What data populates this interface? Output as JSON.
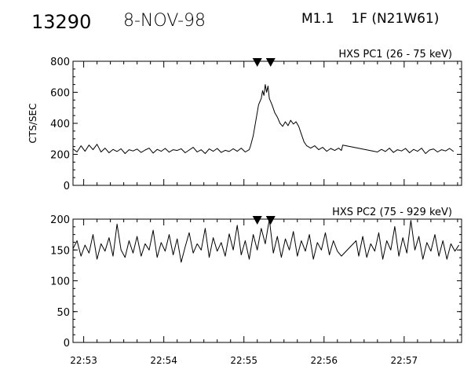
{
  "header": {
    "event_id": "13290",
    "date": "8-NOV-98",
    "flare": "M1.1    1F (N21W61)"
  },
  "x_tick_labels": [
    "22:53",
    "22:54",
    "22:55",
    "22:56",
    "22:57"
  ],
  "chart_data": [
    {
      "type": "line",
      "title": "HXS PC1 (26 - 75 keV)",
      "ylabel": "CTS/SEC",
      "xlabel": "",
      "ylim": [
        0,
        800
      ],
      "yticks": [
        0,
        200,
        400,
        600,
        800
      ],
      "xlim": [
        "22:52:52",
        "22:57:43"
      ],
      "xticks": [
        "22:53",
        "22:54",
        "22:55",
        "22:56",
        "22:57"
      ],
      "markers": [
        "22:55:10",
        "22:55:20"
      ],
      "grid": false,
      "series": [
        {
          "points": [
            [
              "22:52:52",
              235
            ],
            [
              "22:52:55",
              215
            ],
            [
              "22:52:58",
              255
            ],
            [
              "22:53:01",
              220
            ],
            [
              "22:53:04",
              260
            ],
            [
              "22:53:07",
              230
            ],
            [
              "22:53:10",
              265
            ],
            [
              "22:53:13",
              215
            ],
            [
              "22:53:16",
              240
            ],
            [
              "22:53:19",
              210
            ],
            [
              "22:53:22",
              232
            ],
            [
              "22:53:25",
              218
            ],
            [
              "22:53:28",
              236
            ],
            [
              "22:53:31",
              205
            ],
            [
              "22:53:34",
              230
            ],
            [
              "22:53:37",
              222
            ],
            [
              "22:53:40",
              234
            ],
            [
              "22:53:43",
              212
            ],
            [
              "22:53:46",
              228
            ],
            [
              "22:53:49",
              240
            ],
            [
              "22:53:52",
              208
            ],
            [
              "22:53:55",
              232
            ],
            [
              "22:53:58",
              220
            ],
            [
              "22:54:01",
              238
            ],
            [
              "22:54:04",
              214
            ],
            [
              "22:54:07",
              230
            ],
            [
              "22:54:10",
              225
            ],
            [
              "22:54:13",
              236
            ],
            [
              "22:54:16",
              210
            ],
            [
              "22:54:19",
              228
            ],
            [
              "22:54:22",
              245
            ],
            [
              "22:54:25",
              215
            ],
            [
              "22:54:28",
              230
            ],
            [
              "22:54:31",
              205
            ],
            [
              "22:54:34",
              235
            ],
            [
              "22:54:37",
              220
            ],
            [
              "22:54:40",
              238
            ],
            [
              "22:54:43",
              212
            ],
            [
              "22:54:46",
              226
            ],
            [
              "22:54:49",
              218
            ],
            [
              "22:54:52",
              236
            ],
            [
              "22:54:55",
              220
            ],
            [
              "22:54:58",
              240
            ],
            [
              "22:55:01",
              215
            ],
            [
              "22:55:04",
              230
            ],
            [
              "22:55:05",
              255
            ],
            [
              "22:55:07",
              320
            ],
            [
              "22:55:09",
              420
            ],
            [
              "22:55:11",
              520
            ],
            [
              "22:55:13",
              560
            ],
            [
              "22:55:14",
              610
            ],
            [
              "22:55:15",
              580
            ],
            [
              "22:55:16",
              650
            ],
            [
              "22:55:17",
              600
            ],
            [
              "22:55:18",
              640
            ],
            [
              "22:55:19",
              560
            ],
            [
              "22:55:21",
              520
            ],
            [
              "22:55:23",
              470
            ],
            [
              "22:55:25",
              440
            ],
            [
              "22:55:27",
              400
            ],
            [
              "22:55:29",
              380
            ],
            [
              "22:55:31",
              410
            ],
            [
              "22:55:33",
              385
            ],
            [
              "22:55:35",
              420
            ],
            [
              "22:55:37",
              395
            ],
            [
              "22:55:39",
              410
            ],
            [
              "22:55:41",
              380
            ],
            [
              "22:55:43",
              330
            ],
            [
              "22:55:45",
              280
            ],
            [
              "22:55:47",
              255
            ],
            [
              "22:55:50",
              240
            ],
            [
              "22:55:53",
              255
            ],
            [
              "22:55:56",
              230
            ],
            [
              "22:55:59",
              245
            ],
            [
              "22:56:02",
              220
            ],
            [
              "22:56:05",
              238
            ],
            [
              "22:56:08",
              225
            ],
            [
              "22:56:11",
              240
            ],
            [
              "22:56:13",
              225
            ],
            [
              "22:56:14",
              260
            ],
            [
              "22:56:40",
              215
            ],
            [
              "22:56:43",
              232
            ],
            [
              "22:56:46",
              218
            ],
            [
              "22:56:49",
              240
            ],
            [
              "22:56:52",
              212
            ],
            [
              "22:56:55",
              230
            ],
            [
              "22:56:58",
              222
            ],
            [
              "22:57:01",
              238
            ],
            [
              "22:57:04",
              210
            ],
            [
              "22:57:07",
              232
            ],
            [
              "22:57:10",
              220
            ],
            [
              "22:57:13",
              240
            ],
            [
              "22:57:16",
              205
            ],
            [
              "22:57:19",
              228
            ],
            [
              "22:57:22",
              235
            ],
            [
              "22:57:25",
              215
            ],
            [
              "22:57:28",
              230
            ],
            [
              "22:57:31",
              222
            ],
            [
              "22:57:34",
              238
            ],
            [
              "22:57:37",
              218
            ]
          ]
        }
      ]
    },
    {
      "type": "line",
      "title": "HXS PC2 (75 - 929 keV)",
      "ylabel": "",
      "xlabel": "",
      "ylim": [
        0,
        200
      ],
      "yticks": [
        0,
        50,
        100,
        150,
        200
      ],
      "xlim": [
        "22:52:52",
        "22:57:43"
      ],
      "xticks": [
        "22:53",
        "22:54",
        "22:55",
        "22:56",
        "22:57"
      ],
      "markers": [
        "22:55:10",
        "22:55:20"
      ],
      "grid": false,
      "series": [
        {
          "points": [
            [
              "22:52:52",
              152
            ],
            [
              "22:52:55",
              165
            ],
            [
              "22:52:58",
              140
            ],
            [
              "22:53:01",
              158
            ],
            [
              "22:53:04",
              145
            ],
            [
              "22:53:07",
              175
            ],
            [
              "22:53:10",
              135
            ],
            [
              "22:53:13",
              160
            ],
            [
              "22:53:16",
              148
            ],
            [
              "22:53:19",
              170
            ],
            [
              "22:53:22",
              140
            ],
            [
              "22:53:25",
              192
            ],
            [
              "22:53:28",
              150
            ],
            [
              "22:53:31",
              138
            ],
            [
              "22:53:34",
              165
            ],
            [
              "22:53:37",
              145
            ],
            [
              "22:53:40",
              172
            ],
            [
              "22:53:43",
              140
            ],
            [
              "22:53:46",
              160
            ],
            [
              "22:53:49",
              150
            ],
            [
              "22:53:52",
              182
            ],
            [
              "22:53:55",
              138
            ],
            [
              "22:53:58",
              162
            ],
            [
              "22:54:01",
              148
            ],
            [
              "22:54:04",
              175
            ],
            [
              "22:54:07",
              142
            ],
            [
              "22:54:10",
              168
            ],
            [
              "22:54:13",
              130
            ],
            [
              "22:54:16",
              155
            ],
            [
              "22:54:19",
              178
            ],
            [
              "22:54:22",
              145
            ],
            [
              "22:54:25",
              160
            ],
            [
              "22:54:28",
              150
            ],
            [
              "22:54:31",
              185
            ],
            [
              "22:54:34",
              138
            ],
            [
              "22:54:37",
              170
            ],
            [
              "22:54:40",
              148
            ],
            [
              "22:54:43",
              162
            ],
            [
              "22:54:46",
              140
            ],
            [
              "22:54:49",
              176
            ],
            [
              "22:54:52",
              150
            ],
            [
              "22:54:55",
              190
            ],
            [
              "22:54:58",
              142
            ],
            [
              "22:55:01",
              165
            ],
            [
              "22:55:04",
              135
            ],
            [
              "22:55:07",
              175
            ],
            [
              "22:55:10",
              150
            ],
            [
              "22:55:13",
              185
            ],
            [
              "22:55:16",
              160
            ],
            [
              "22:55:19",
              200
            ],
            [
              "22:55:22",
              145
            ],
            [
              "22:55:25",
              172
            ],
            [
              "22:55:28",
              138
            ],
            [
              "22:55:31",
              168
            ],
            [
              "22:55:34",
              150
            ],
            [
              "22:55:37",
              180
            ],
            [
              "22:55:40",
              140
            ],
            [
              "22:55:43",
              165
            ],
            [
              "22:55:46",
              148
            ],
            [
              "22:55:49",
              175
            ],
            [
              "22:55:52",
              135
            ],
            [
              "22:55:55",
              162
            ],
            [
              "22:55:58",
              150
            ],
            [
              "22:56:01",
              178
            ],
            [
              "22:56:04",
              142
            ],
            [
              "22:56:07",
              165
            ],
            [
              "22:56:10",
              148
            ],
            [
              "22:56:13",
              140
            ],
            [
              "22:56:24",
              165
            ],
            [
              "22:56:26",
              140
            ],
            [
              "22:56:29",
              172
            ],
            [
              "22:56:32",
              138
            ],
            [
              "22:56:35",
              160
            ],
            [
              "22:56:38",
              148
            ],
            [
              "22:56:41",
              178
            ],
            [
              "22:56:44",
              135
            ],
            [
              "22:56:47",
              165
            ],
            [
              "22:56:50",
              150
            ],
            [
              "22:56:53",
              188
            ],
            [
              "22:56:56",
              140
            ],
            [
              "22:56:59",
              170
            ],
            [
              "22:57:02",
              145
            ],
            [
              "22:57:05",
              198
            ],
            [
              "22:57:08",
              150
            ],
            [
              "22:57:11",
              172
            ],
            [
              "22:57:14",
              135
            ],
            [
              "22:57:17",
              162
            ],
            [
              "22:57:20",
              148
            ],
            [
              "22:57:23",
              175
            ],
            [
              "22:57:26",
              140
            ],
            [
              "22:57:29",
              165
            ],
            [
              "22:57:32",
              135
            ],
            [
              "22:57:35",
              160
            ],
            [
              "22:57:38",
              148
            ],
            [
              "22:57:41",
              158
            ]
          ]
        }
      ]
    }
  ]
}
